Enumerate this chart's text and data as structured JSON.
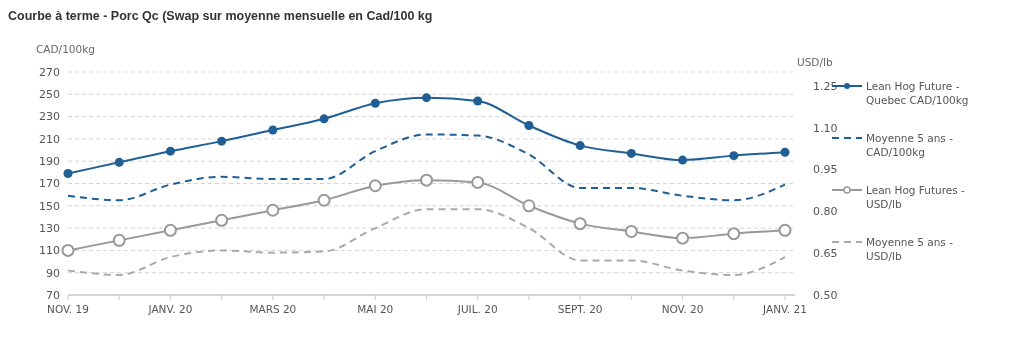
{
  "chart_data": {
    "type": "line",
    "title": "Courbe à terme - Porc Qc (Swap sur moyenne mensuelle en Cad/100 kg",
    "ylabel": "CAD/100kg",
    "y2label": "USD/lb",
    "categories": [
      "NOV. 19",
      null,
      "JANV. 20",
      null,
      "MARS 20",
      null,
      "MAI 20",
      null,
      "JUIL. 20",
      null,
      "SEPT. 20",
      null,
      "NOV. 20",
      null,
      "JANV. 21"
    ],
    "ylim": [
      70,
      270
    ],
    "yticks": [
      70,
      90,
      110,
      130,
      150,
      170,
      190,
      210,
      230,
      250,
      270
    ],
    "y2lim": [
      0.5,
      1.3
    ],
    "y2ticks": [
      {
        "value": 0.5,
        "label": "0.50"
      },
      {
        "value": 0.65,
        "label": "0.65"
      },
      {
        "value": 0.8,
        "label": "0.80"
      },
      {
        "value": 0.95,
        "label": "0.95"
      },
      {
        "value": 1.1,
        "label": "1.10"
      },
      {
        "value": 1.25,
        "label": "1.25"
      }
    ],
    "grid": "y",
    "legend": "right",
    "series": [
      {
        "name": "Lean Hog Future - Quebec CAD/100kg",
        "color": "#1f5f96",
        "marker": "circle",
        "line_style": "solid",
        "values": [
          179,
          189,
          199,
          208,
          218,
          228,
          242,
          247,
          244,
          222,
          204,
          197,
          191,
          195,
          198
        ]
      },
      {
        "name": "Moyenne 5 ans - CAD/100kg",
        "color": "#1f5f96",
        "marker": "none",
        "line_style": "dashed",
        "values": [
          159,
          155,
          169,
          176,
          174,
          174,
          199,
          214,
          213,
          196,
          166,
          166,
          159,
          155,
          169
        ]
      },
      {
        "name": "Lean Hog Futures - USD/lb",
        "color": "#999999",
        "marker": "circle",
        "line_style": "solid",
        "axis": "y2",
        "values": [
          0.66,
          0.696,
          0.732,
          0.768,
          0.804,
          0.84,
          0.892,
          0.912,
          0.904,
          0.82,
          0.756,
          0.728,
          0.704,
          0.72,
          0.732
        ]
      },
      {
        "name": "Moyenne 5 ans - USD/lb",
        "color": "#aaaaaa",
        "marker": "none",
        "line_style": "dashed",
        "axis": "y2",
        "values": [
          0.588,
          0.572,
          0.636,
          0.66,
          0.652,
          0.656,
          0.74,
          0.808,
          0.808,
          0.74,
          0.624,
          0.624,
          0.588,
          0.572,
          0.636
        ]
      }
    ]
  }
}
